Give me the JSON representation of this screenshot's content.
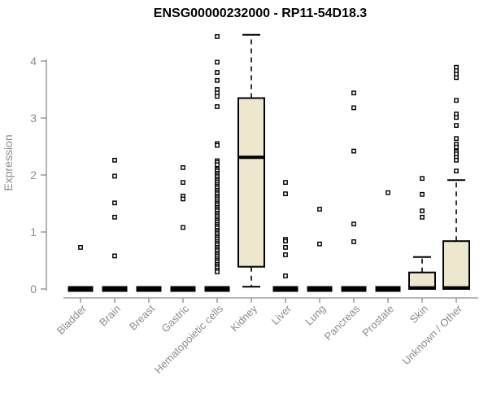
{
  "chart_data": {
    "type": "boxplot",
    "title": "ENSG00000232000 - RP11-54D18.3",
    "ylabel": "Expression",
    "ylim": [
      0,
      4.6
    ],
    "yticks": [
      0,
      1,
      2,
      3,
      4
    ],
    "grid": false,
    "legend": null,
    "colors": {
      "box_fill": "#ece7cd",
      "box_stroke": "#000000",
      "median": "#000000",
      "outlier_stroke": "#000000",
      "axis": "#8c8c8c",
      "tick_label": "#8c8c8c",
      "title": "#000000"
    },
    "categories": [
      "Bladder",
      "Brain",
      "Breast",
      "Gastric",
      "Hematopoietic cells",
      "Kidney",
      "Liver",
      "Lung",
      "Pancreas",
      "Prostate",
      "Skin",
      "Unknown / Other"
    ],
    "boxes": [
      {
        "category": "Bladder",
        "q1": 0,
        "median": 0,
        "q3": 0,
        "whisker_low": 0,
        "whisker_high": 0,
        "outliers": [
          0.73
        ]
      },
      {
        "category": "Brain",
        "q1": 0,
        "median": 0,
        "q3": 0,
        "whisker_low": 0,
        "whisker_high": 0,
        "outliers": [
          2.26,
          1.98,
          1.51,
          1.26,
          0.58
        ]
      },
      {
        "category": "Breast",
        "q1": 0,
        "median": 0,
        "q3": 0,
        "whisker_low": 0,
        "whisker_high": 0,
        "outliers": []
      },
      {
        "category": "Gastric",
        "q1": 0,
        "median": 0,
        "q3": 0,
        "whisker_low": 0,
        "whisker_high": 0,
        "outliers": [
          2.13,
          1.87,
          1.63,
          1.58,
          1.08
        ]
      },
      {
        "category": "Hematopoietic cells",
        "q1": 0,
        "median": 0,
        "q3": 0,
        "whisker_low": 0,
        "whisker_high": 0,
        "outliers": [
          4.43,
          3.98,
          3.8,
          3.66,
          3.5,
          3.44,
          3.38,
          3.2,
          2.55,
          2.52,
          2.25,
          2.22,
          2.18,
          2.1,
          2.07,
          2.03,
          2.0,
          1.97,
          1.93,
          1.9,
          1.87,
          1.83,
          1.8,
          1.77,
          1.73,
          1.7,
          1.67,
          1.63,
          1.6,
          1.57,
          1.53,
          1.5,
          1.47,
          1.43,
          1.4,
          1.37,
          1.33,
          1.3,
          1.27,
          1.23,
          1.2,
          1.17,
          1.13,
          1.1,
          1.07,
          1.03,
          1.0,
          0.97,
          0.93,
          0.9,
          0.87,
          0.83,
          0.8,
          0.77,
          0.73,
          0.7,
          0.67,
          0.63,
          0.6,
          0.57,
          0.53,
          0.5,
          0.47,
          0.43,
          0.4,
          0.37,
          0.33,
          0.3
        ]
      },
      {
        "category": "Kidney",
        "q1": 0.39,
        "median": 2.31,
        "q3": 3.35,
        "whisker_low": 0.04,
        "whisker_high": 4.46,
        "outliers": []
      },
      {
        "category": "Liver",
        "q1": 0,
        "median": 0,
        "q3": 0,
        "whisker_low": 0,
        "whisker_high": 0,
        "outliers": [
          1.87,
          1.67,
          0.87,
          0.84,
          0.73,
          0.6,
          0.23
        ]
      },
      {
        "category": "Lung",
        "q1": 0,
        "median": 0,
        "q3": 0,
        "whisker_low": 0,
        "whisker_high": 0,
        "outliers": [
          1.4,
          0.79
        ]
      },
      {
        "category": "Pancreas",
        "q1": 0,
        "median": 0,
        "q3": 0,
        "whisker_low": 0,
        "whisker_high": 0,
        "outliers": [
          3.44,
          3.18,
          2.42,
          1.14,
          0.83
        ]
      },
      {
        "category": "Prostate",
        "q1": 0,
        "median": 0,
        "q3": 0,
        "whisker_low": 0,
        "whisker_high": 0,
        "outliers": [
          1.69
        ]
      },
      {
        "category": "Skin",
        "q1": 0,
        "median": 0.02,
        "q3": 0.29,
        "whisker_low": 0,
        "whisker_high": 0.56,
        "outliers": [
          1.94,
          1.66,
          1.37,
          1.26
        ]
      },
      {
        "category": "Unknown / Other",
        "q1": 0,
        "median": 0.02,
        "q3": 0.84,
        "whisker_low": 0,
        "whisker_high": 1.91,
        "outliers": [
          3.89,
          3.83,
          3.77,
          3.71,
          3.31,
          3.07,
          3.01,
          2.87,
          2.64,
          2.54,
          2.49,
          2.41,
          2.37,
          2.31,
          2.26,
          2.07
        ]
      }
    ]
  }
}
